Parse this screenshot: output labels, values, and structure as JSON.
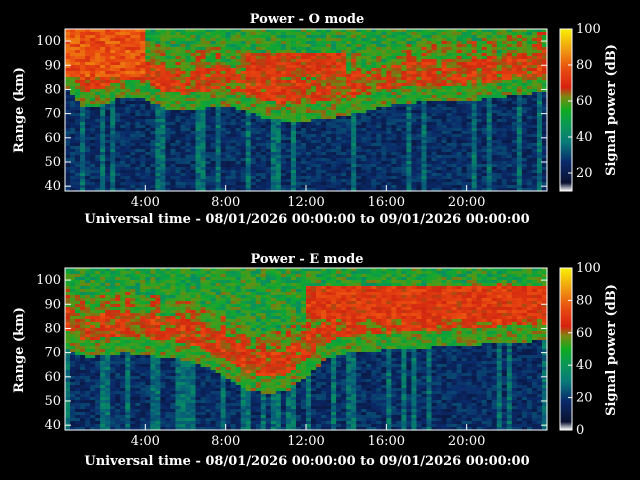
{
  "chart_data": [
    {
      "type": "heatmap",
      "title": "Power - O mode",
      "xlabel": "Universal time - 08/01/2026 00:00:00 to 09/01/2026 00:00:00",
      "ylabel": "Range (km)",
      "colorbar_label": "Signal power (dB)",
      "x_range_hours": [
        0,
        24
      ],
      "x_ticks": [
        "4:00",
        "8:00",
        "12:00",
        "16:00",
        "20:00"
      ],
      "y_range": [
        38,
        105
      ],
      "y_ticks": [
        "40",
        "50",
        "60",
        "70",
        "80",
        "90",
        "100"
      ],
      "colorbar_range": [
        10,
        100
      ],
      "colorbar_ticks": [
        "20",
        "40",
        "60",
        "80",
        "100"
      ],
      "mode": "O",
      "baseline_profile_km": [
        [
          0,
          84
        ],
        [
          1,
          75
        ],
        [
          2,
          77
        ],
        [
          3,
          80
        ],
        [
          4,
          79
        ],
        [
          5,
          75
        ],
        [
          6,
          74
        ],
        [
          7,
          75
        ],
        [
          8,
          76
        ],
        [
          9,
          74
        ],
        [
          10,
          71
        ],
        [
          11,
          70
        ],
        [
          12,
          70
        ],
        [
          13,
          71
        ],
        [
          14,
          72
        ],
        [
          15,
          74
        ],
        [
          16,
          76
        ],
        [
          18,
          78
        ],
        [
          20,
          78
        ],
        [
          22,
          80
        ],
        [
          24,
          82
        ]
      ]
    },
    {
      "type": "heatmap",
      "title": "Power - E mode",
      "xlabel": "Universal time - 08/01/2026 00:00:00 to 09/01/2026 00:00:00",
      "ylabel": "Range (km)",
      "colorbar_label": "Signal power (dB)",
      "x_range_hours": [
        0,
        24
      ],
      "x_ticks": [
        "4:00",
        "8:00",
        "12:00",
        "16:00",
        "20:00"
      ],
      "y_range": [
        38,
        105
      ],
      "y_ticks": [
        "40",
        "50",
        "60",
        "70",
        "80",
        "90",
        "100"
      ],
      "colorbar_range": [
        0,
        100
      ],
      "colorbar_ticks": [
        "0",
        "20",
        "40",
        "60",
        "80",
        "100"
      ],
      "mode": "E",
      "baseline_profile_km": [
        [
          0,
          75
        ],
        [
          1,
          71
        ],
        [
          2,
          72
        ],
        [
          3,
          73
        ],
        [
          4,
          72
        ],
        [
          5,
          71
        ],
        [
          6,
          70
        ],
        [
          7,
          67
        ],
        [
          8,
          63
        ],
        [
          9,
          58
        ],
        [
          10,
          56
        ],
        [
          11,
          57
        ],
        [
          12,
          63
        ],
        [
          13,
          70
        ],
        [
          14,
          73
        ],
        [
          16,
          74
        ],
        [
          18,
          75
        ],
        [
          20,
          76
        ],
        [
          22,
          77
        ],
        [
          24,
          78
        ]
      ]
    }
  ]
}
